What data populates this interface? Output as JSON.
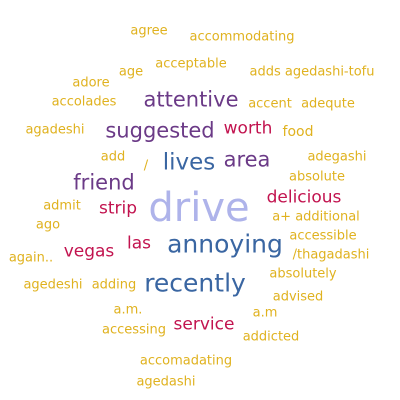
{
  "colors": {
    "gold": "#e0b21f",
    "purple": "#6b3a87",
    "crimson": "#c2134f",
    "blue": "#3a66a2",
    "lavender": "#aeb3ea"
  },
  "words": [
    {
      "text": "agree",
      "color": "gold"
    },
    {
      "text": "accommodating",
      "color": "gold"
    },
    {
      "text": "acceptable",
      "color": "gold"
    },
    {
      "text": "age",
      "color": "gold"
    },
    {
      "text": "adds agedashi-tofu",
      "color": "gold"
    },
    {
      "text": "adore",
      "color": "gold"
    },
    {
      "text": "accolades",
      "color": "gold"
    },
    {
      "text": "attentive",
      "color": "purple"
    },
    {
      "text": "accent",
      "color": "gold"
    },
    {
      "text": "adequte",
      "color": "gold"
    },
    {
      "text": "agadeshi",
      "color": "gold"
    },
    {
      "text": "suggested",
      "color": "purple"
    },
    {
      "text": "worth",
      "color": "crimson"
    },
    {
      "text": "food",
      "color": "gold"
    },
    {
      "text": "add",
      "color": "gold"
    },
    {
      "text": "lives",
      "color": "blue"
    },
    {
      "text": "area",
      "color": "purple"
    },
    {
      "text": "adegashi",
      "color": "gold"
    },
    {
      "text": "/",
      "color": "gold"
    },
    {
      "text": "absolute",
      "color": "gold"
    },
    {
      "text": "friend",
      "color": "purple"
    },
    {
      "text": "delicious",
      "color": "crimson"
    },
    {
      "text": "drive",
      "color": "lavender"
    },
    {
      "text": "admit",
      "color": "gold"
    },
    {
      "text": "strip",
      "color": "crimson"
    },
    {
      "text": "a+ additional",
      "color": "gold"
    },
    {
      "text": "ago",
      "color": "gold"
    },
    {
      "text": "accessible",
      "color": "gold"
    },
    {
      "text": "las",
      "color": "crimson"
    },
    {
      "text": "annoying",
      "color": "blue"
    },
    {
      "text": "vegas",
      "color": "crimson"
    },
    {
      "text": "/thagadashi",
      "color": "gold"
    },
    {
      "text": "again..",
      "color": "gold"
    },
    {
      "text": "absolutely",
      "color": "gold"
    },
    {
      "text": "recently",
      "color": "blue"
    },
    {
      "text": "agedeshi",
      "color": "gold"
    },
    {
      "text": "adding",
      "color": "gold"
    },
    {
      "text": "advised",
      "color": "gold"
    },
    {
      "text": "a.m.",
      "color": "gold"
    },
    {
      "text": "a.m",
      "color": "gold"
    },
    {
      "text": "accessing",
      "color": "gold"
    },
    {
      "text": "service",
      "color": "crimson"
    },
    {
      "text": "addicted",
      "color": "gold"
    },
    {
      "text": "accomadating",
      "color": "gold"
    },
    {
      "text": "agedashi",
      "color": "gold"
    }
  ]
}
